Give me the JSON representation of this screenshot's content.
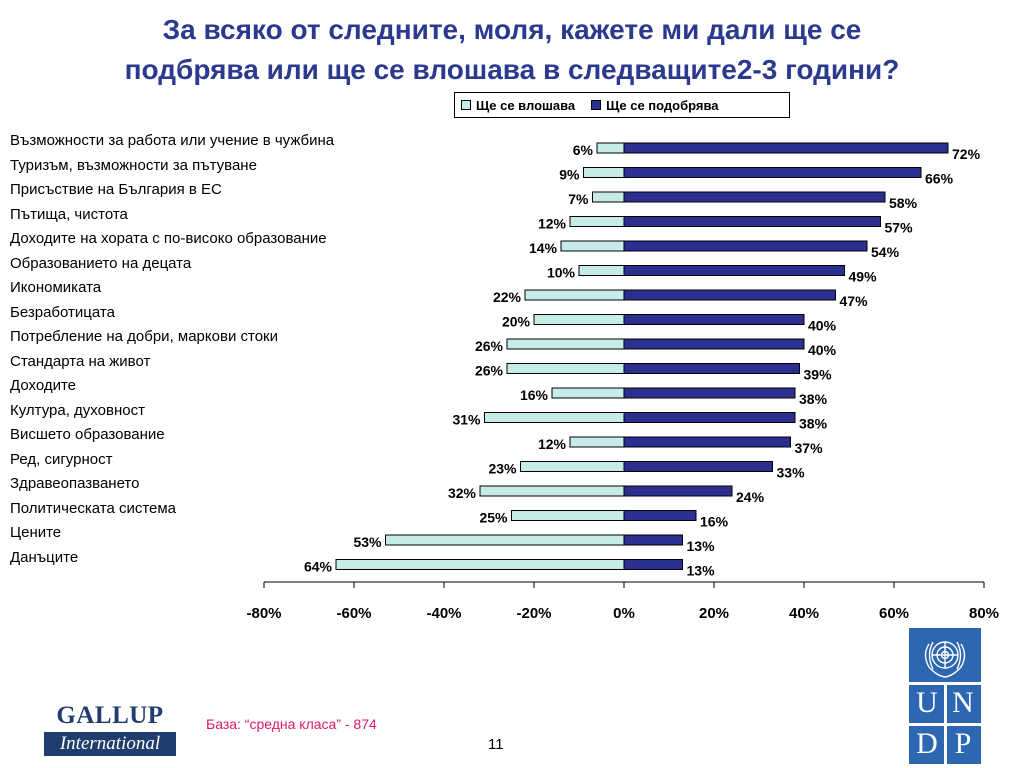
{
  "title_line1": "За всяко от следните, моля, кажете ми дали ще се",
  "title_line2": "подбрява или ще се влошава в следващите2-3 години?",
  "legend": {
    "worse": "Ще се влошава",
    "better": "Ще се подобрява"
  },
  "colors": {
    "worse": "#c6ecea",
    "better": "#2b2f8f",
    "title": "#2b3a8f",
    "base_note": "#e0186f"
  },
  "chart_data": {
    "type": "bar",
    "orientation": "horizontal-diverging",
    "categories": [
      "Възможности за работа или учение в чужбина",
      "Туризъм, възможности за пътуване",
      "Присъствие на България в ЕС",
      "Пътища, чистота",
      "Доходите на хората с по-високо образование",
      "Образованието на децата",
      "Икономиката",
      "Безработицата",
      "Потребление на добри, маркови стоки",
      "Стандарта на живот",
      "Доходите",
      "Култура, духовност",
      "Висшето образование",
      "Ред, сигурност",
      "Здравеопазването",
      "Политическата система",
      "Цените",
      "Данъците"
    ],
    "series": [
      {
        "name": "Ще се влошава",
        "values": [
          6,
          9,
          7,
          12,
          14,
          10,
          22,
          20,
          26,
          26,
          16,
          31,
          12,
          23,
          32,
          25,
          53,
          64
        ]
      },
      {
        "name": "Ще се подобрява",
        "values": [
          72,
          66,
          58,
          57,
          54,
          49,
          47,
          40,
          40,
          39,
          38,
          38,
          37,
          33,
          24,
          16,
          13,
          13
        ]
      }
    ],
    "xlim": [
      -80,
      80
    ],
    "xticks": [
      "-80%",
      "-60%",
      "-40%",
      "-20%",
      "0%",
      "20%",
      "40%",
      "60%",
      "80%"
    ],
    "legend_position": "top"
  },
  "footer": {
    "base_note": "База: “средна класа” - 874",
    "page_number": "11",
    "gallup_line1": "GALLUP",
    "gallup_line2": "International",
    "undp_letters": [
      "U",
      "N",
      "D",
      "P"
    ]
  }
}
